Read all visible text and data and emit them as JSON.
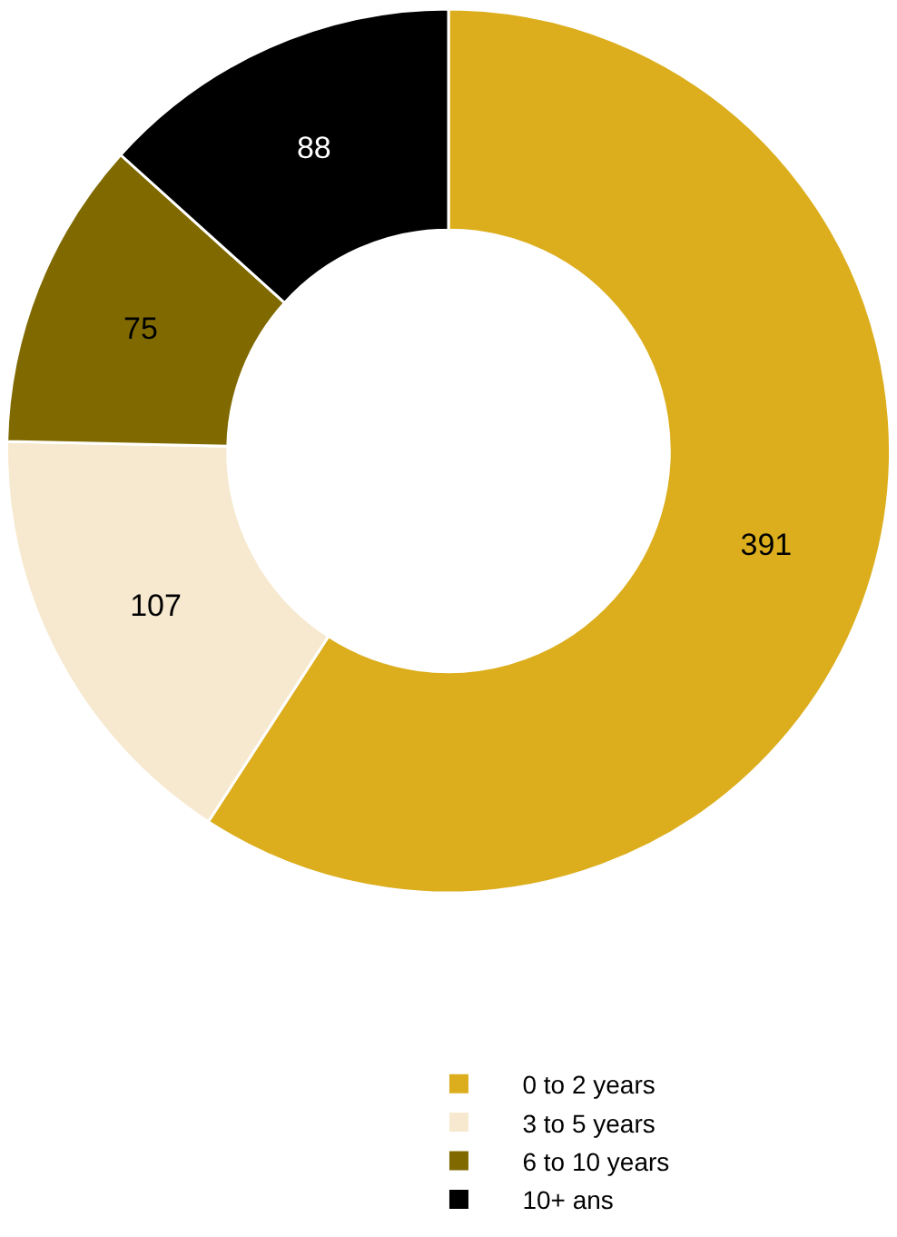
{
  "chart_data": {
    "type": "donut",
    "categories": [
      "0 to 2 years",
      "3 to 5 years",
      "6 to 10 years",
      "10+ ans"
    ],
    "values": [
      391,
      107,
      75,
      88
    ],
    "colors": [
      "#dcae1d",
      "#f7e9cf",
      "#806a00",
      "#000000"
    ],
    "data_labels": true,
    "legend": "bottom"
  }
}
